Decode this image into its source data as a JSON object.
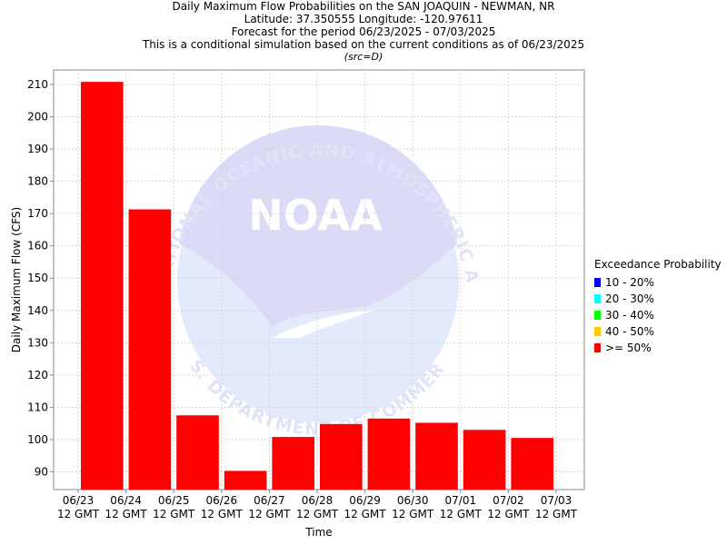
{
  "header": {
    "line1": "Daily Maximum Flow Probabilities on the SAN JOAQUIN - NEWMAN, NR",
    "line2": "Latitude: 37.350555 Longitude: -120.97611",
    "line3": "Forecast for the period 06/23/2025 - 07/03/2025",
    "line4": "This is a conditional simulation based on the current conditions as of 06/23/2025",
    "src": "(src=D)"
  },
  "watermark": {
    "logo_text": "NOAA",
    "ring_text": "NATIONAL OCEANIC AND ATMOSPHERIC ADMINISTRATION",
    "bottom_text": "U.S. DEPARTMENT OF COMMERCE"
  },
  "legend": {
    "title": "Exceedance Probability",
    "items": [
      {
        "label": "10 - 20%",
        "color": "#0000ff"
      },
      {
        "label": "20 - 30%",
        "color": "#00ffff"
      },
      {
        "label": "30 - 40%",
        "color": "#00ff00"
      },
      {
        "label": "40 - 50%",
        "color": "#ffc800"
      },
      {
        "label": ">= 50%",
        "color": "#ff0000"
      }
    ]
  },
  "chart_data": {
    "type": "bar",
    "title": "Daily Maximum Flow Probabilities on the SAN JOAQUIN - NEWMAN, NR",
    "xlabel": "Time",
    "ylabel": "Daily Maximum Flow (CFS)",
    "ylim": [
      84.5,
      214.5
    ],
    "yticks": [
      90,
      100,
      110,
      120,
      130,
      140,
      150,
      160,
      170,
      180,
      190,
      200,
      210
    ],
    "grid": true,
    "legend_placement": "right",
    "bar_color": "#ff0000",
    "x_tick_dates": [
      "06/23",
      "06/24",
      "06/25",
      "06/26",
      "06/27",
      "06/28",
      "06/29",
      "06/30",
      "07/01",
      "07/02",
      "07/03"
    ],
    "x_tick_time": "12 GMT",
    "series": [
      {
        "name": ">= 50%",
        "categories": [
          "06/23",
          "06/24",
          "06/25",
          "06/26",
          "06/27",
          "06/28",
          "06/29",
          "06/30",
          "07/01",
          "07/02"
        ],
        "values": [
          210.8,
          171.3,
          107.5,
          90.3,
          100.8,
          104.8,
          106.5,
          105.2,
          103.0,
          100.5
        ]
      }
    ]
  }
}
